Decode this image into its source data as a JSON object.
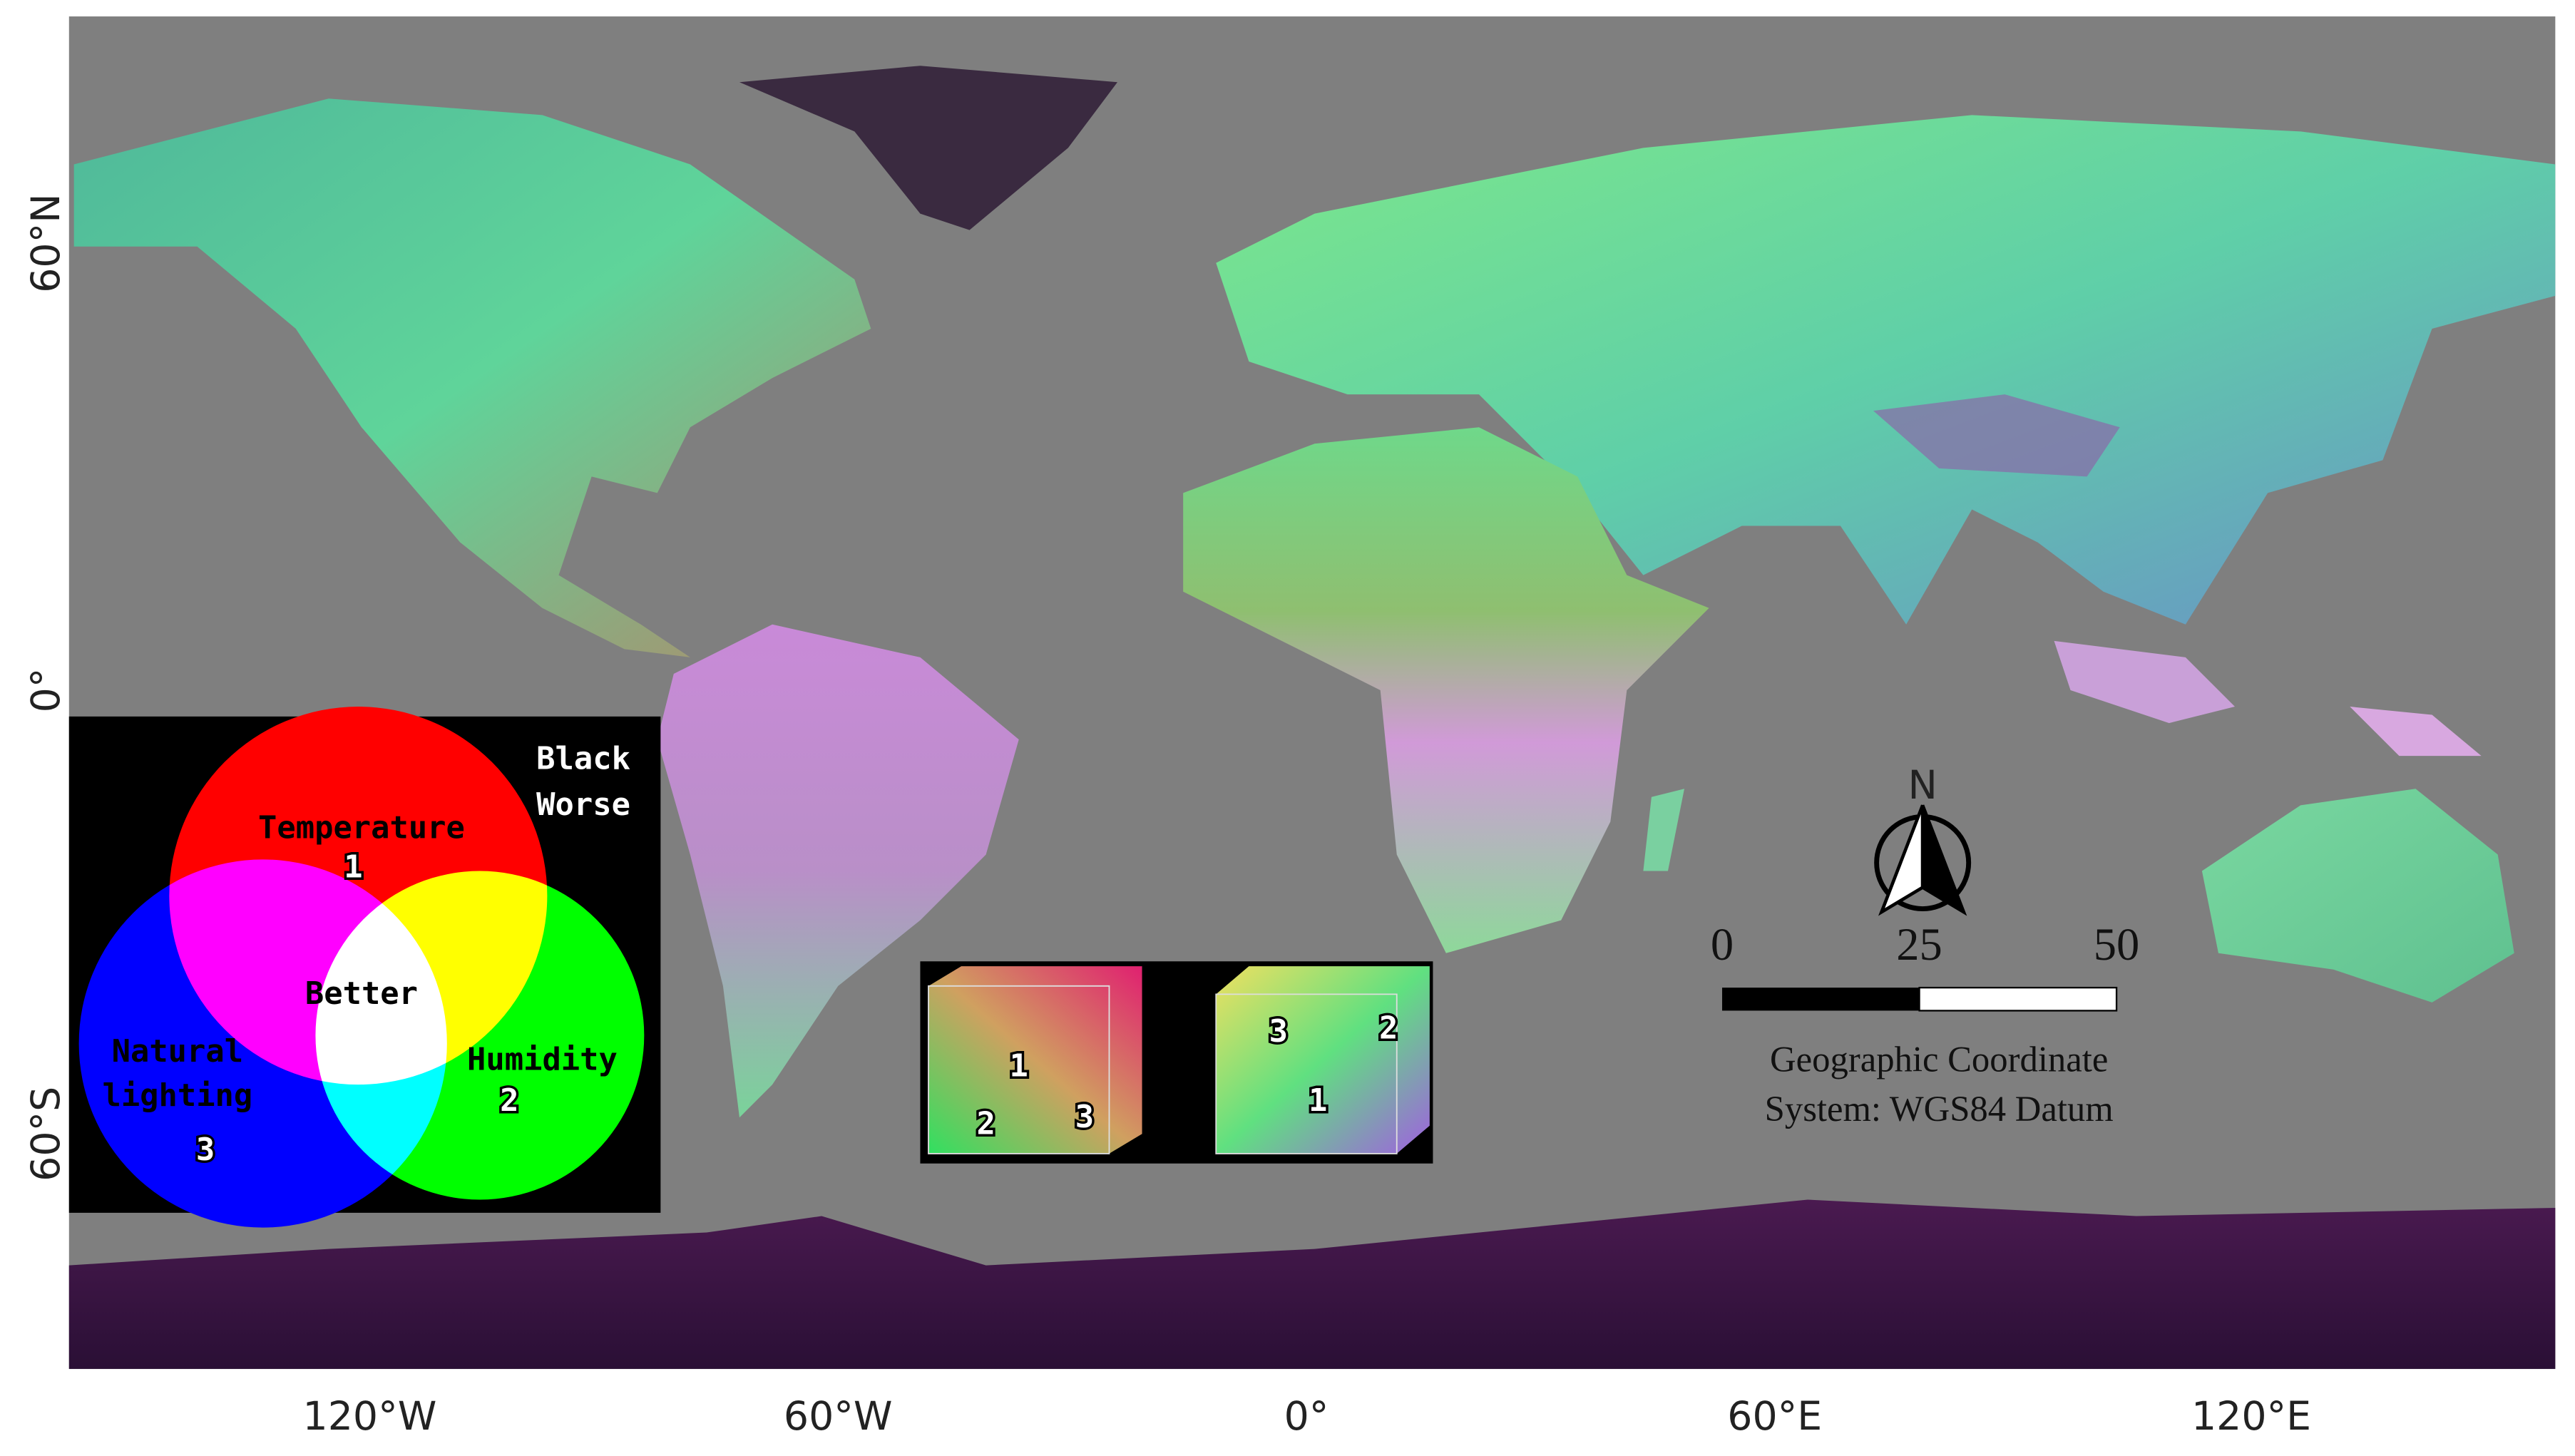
{
  "map": {
    "x_labels": [
      "120°W",
      "60°W",
      "0°",
      "60°E",
      "120°E"
    ],
    "y_labels": [
      "60°N",
      "0°",
      "60°S"
    ]
  },
  "color_legend": {
    "corner_text": [
      "Black",
      "Worse"
    ],
    "temperature": {
      "label": "Temperature",
      "number": "1"
    },
    "humidity": {
      "label": "Humidity",
      "number": "2"
    },
    "natural_lighting": {
      "label": [
        "Natural",
        "lighting"
      ],
      "number": "3"
    },
    "center": "Better"
  },
  "cube_legend": {
    "left_cube": [
      "1",
      "2",
      "3"
    ],
    "right_cube": [
      "3",
      "2",
      "1"
    ]
  },
  "north_arrow": "N",
  "scale_bar": {
    "ticks": [
      0,
      25,
      50
    ]
  },
  "datum": [
    "Geographic Coordinate",
    "System: WGS84 Datum"
  ]
}
